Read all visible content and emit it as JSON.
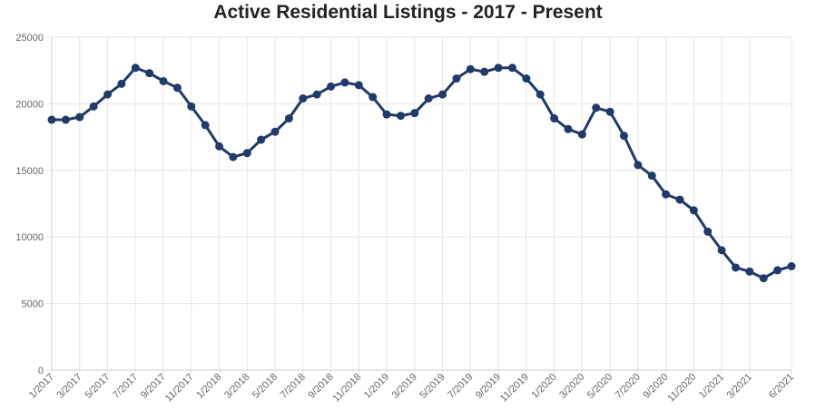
{
  "chart_data": {
    "type": "line",
    "title": "Active Residential Listings - 2017 - Present",
    "xlabel": "",
    "ylabel": "",
    "ylim": [
      0,
      25000
    ],
    "y_ticks": [
      0,
      5000,
      10000,
      15000,
      20000,
      25000
    ],
    "grid": true,
    "legend": "none",
    "x_tick_labels": [
      "1/2017",
      "3/2017",
      "5/2017",
      "7/2017",
      "9/2017",
      "11/2017",
      "1/2018",
      "3/2018",
      "5/2018",
      "7/2018",
      "9/2018",
      "11/2018",
      "1/2019",
      "3/2019",
      "5/2019",
      "7/2019",
      "9/2019",
      "11/2019",
      "1/2020",
      "3/2020",
      "5/2020",
      "7/2020",
      "9/2020",
      "11/2020",
      "1/2021",
      "3/2021",
      "6/2021"
    ],
    "colors": {
      "line": "#1f3a6b",
      "grid": "#e6e6e6",
      "axis": "#cccccc",
      "text": "#666666"
    },
    "series": [
      {
        "name": "Active Residential Listings",
        "values": [
          18800,
          18800,
          19000,
          19800,
          20700,
          21500,
          22700,
          22300,
          21700,
          21200,
          19800,
          18400,
          16800,
          16000,
          16300,
          17300,
          17900,
          18900,
          20400,
          20700,
          21300,
          21600,
          21400,
          20500,
          19200,
          19100,
          19300,
          20400,
          20700,
          21900,
          22600,
          22400,
          22700,
          22700,
          21900,
          20700,
          18900,
          18100,
          17700,
          19700,
          19400,
          17600,
          15400,
          14600,
          13200,
          12800,
          12000,
          10400,
          9000,
          7700,
          7400,
          6900,
          7500,
          7800
        ]
      }
    ]
  }
}
